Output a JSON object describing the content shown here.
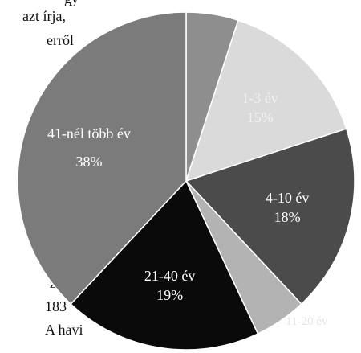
{
  "chart_data": {
    "type": "pie",
    "categories": [
      null,
      "1-3 év",
      "4-10 év",
      "11-20 év",
      "21-40 év",
      "41-nél több év"
    ],
    "values": [
      5,
      15,
      18,
      5,
      19,
      38
    ],
    "value_labels": [
      null,
      "15%",
      "18%",
      null,
      "19%",
      "38%"
    ],
    "colors": [
      "#8e8e8e",
      "#dadada",
      "#4b4b4b",
      "#b3b3b3",
      "#0a0a0a",
      "#7b7b7b"
    ]
  },
  "text_fragments": [
    "gy",
    "azt írja,",
    "erről",
    "a",
    "z-",
    "183",
    "A havi"
  ]
}
